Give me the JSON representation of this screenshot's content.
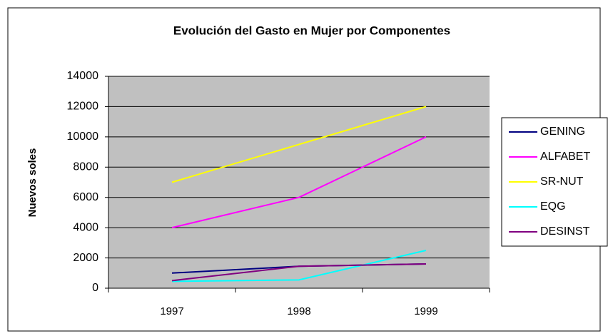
{
  "chart_data": {
    "type": "line",
    "title": "Evolución del Gasto en Mujer por Componentes",
    "y_label": "Nuevos soles",
    "categories": [
      "1997",
      "1998",
      "1999"
    ],
    "series": [
      {
        "name": "GENING",
        "color": "#000080",
        "values": [
          1000,
          1450,
          1600
        ]
      },
      {
        "name": "ALFABET",
        "color": "#ff00ff",
        "values": [
          4000,
          6000,
          10000
        ]
      },
      {
        "name": "SR-NUT",
        "color": "#ffff00",
        "values": [
          7000,
          9500,
          12000
        ]
      },
      {
        "name": "EQG",
        "color": "#00ffff",
        "values": [
          450,
          550,
          2500
        ]
      },
      {
        "name": "DESINST",
        "color": "#800080",
        "values": [
          500,
          1450,
          1600
        ]
      }
    ],
    "ylim": [
      0,
      14000
    ],
    "yticks": [
      0,
      2000,
      4000,
      6000,
      8000,
      10000,
      12000,
      14000
    ],
    "grid": true,
    "legend": "right",
    "plot_background": "#c0c0c0"
  }
}
